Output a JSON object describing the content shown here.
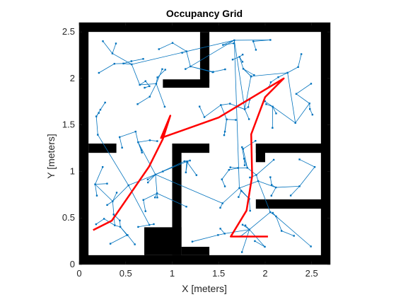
{
  "chart_data": {
    "type": "occupancy-grid-path-plot",
    "title": "Occupancy Grid",
    "xlabel": "X [meters]",
    "ylabel": "Y [meters]",
    "xlim": [
      0,
      2.7
    ],
    "ylim": [
      0,
      2.6
    ],
    "xticks": [
      0,
      0.5,
      1,
      1.5,
      2,
      2.5
    ],
    "xtick_labels": [
      "0",
      "0.5",
      "1",
      "1.5",
      "2",
      "2.5"
    ],
    "yticks": [
      0,
      0.5,
      1,
      1.5,
      2,
      2.5
    ],
    "ytick_labels": [
      "0",
      "0.5",
      "1",
      "1.5",
      "2",
      "2.5"
    ],
    "colors": {
      "map_free": "#ffffff",
      "map_occupied": "#000000",
      "tree": "#0072bd",
      "path": "#ff0000",
      "axes": "#262626"
    },
    "occupied_cells": [
      {
        "x0": 0.0,
        "y0": 0.0,
        "x1": 0.1,
        "y1": 2.6
      },
      {
        "x0": 2.6,
        "y0": 0.0,
        "x1": 2.7,
        "y1": 2.6
      },
      {
        "x0": 0.0,
        "y0": 0.0,
        "x1": 2.7,
        "y1": 0.1
      },
      {
        "x0": 0.0,
        "y0": 2.5,
        "x1": 2.7,
        "y1": 2.6
      },
      {
        "x0": 1.3,
        "y0": 1.95,
        "x1": 1.4,
        "y1": 2.5
      },
      {
        "x0": 0.9,
        "y0": 1.9,
        "x1": 1.4,
        "y1": 1.99
      },
      {
        "x0": 0.1,
        "y0": 1.2,
        "x1": 0.4,
        "y1": 1.3
      },
      {
        "x0": 1.0,
        "y0": 1.2,
        "x1": 1.4,
        "y1": 1.3
      },
      {
        "x0": 1.0,
        "y0": 0.1,
        "x1": 1.1,
        "y1": 1.3
      },
      {
        "x0": 0.7,
        "y0": 0.1,
        "x1": 1.1,
        "y1": 0.4
      },
      {
        "x0": 1.1,
        "y0": 0.1,
        "x1": 1.4,
        "y1": 0.19
      },
      {
        "x0": 1.9,
        "y0": 1.2,
        "x1": 2.7,
        "y1": 1.3
      },
      {
        "x0": 1.9,
        "y0": 1.1,
        "x1": 2.0,
        "y1": 1.3
      },
      {
        "x0": 1.9,
        "y0": 0.6,
        "x1": 2.7,
        "y1": 0.7
      }
    ],
    "tree_edges_approx_count": 170,
    "tree_bounds": {
      "x": [
        0.15,
        2.55
      ],
      "y": [
        0.12,
        2.42
      ]
    },
    "path": {
      "x": [
        0.15,
        0.35,
        0.75,
        0.9,
        0.98,
        0.88,
        1.5,
        2.2,
        2.0,
        1.85,
        1.86,
        1.8,
        1.63,
        2.03
      ],
      "y": [
        0.37,
        0.47,
        1.05,
        1.35,
        1.6,
        1.36,
        1.58,
        2.0,
        1.8,
        1.4,
        0.95,
        0.58,
        0.3,
        0.3
      ]
    }
  }
}
